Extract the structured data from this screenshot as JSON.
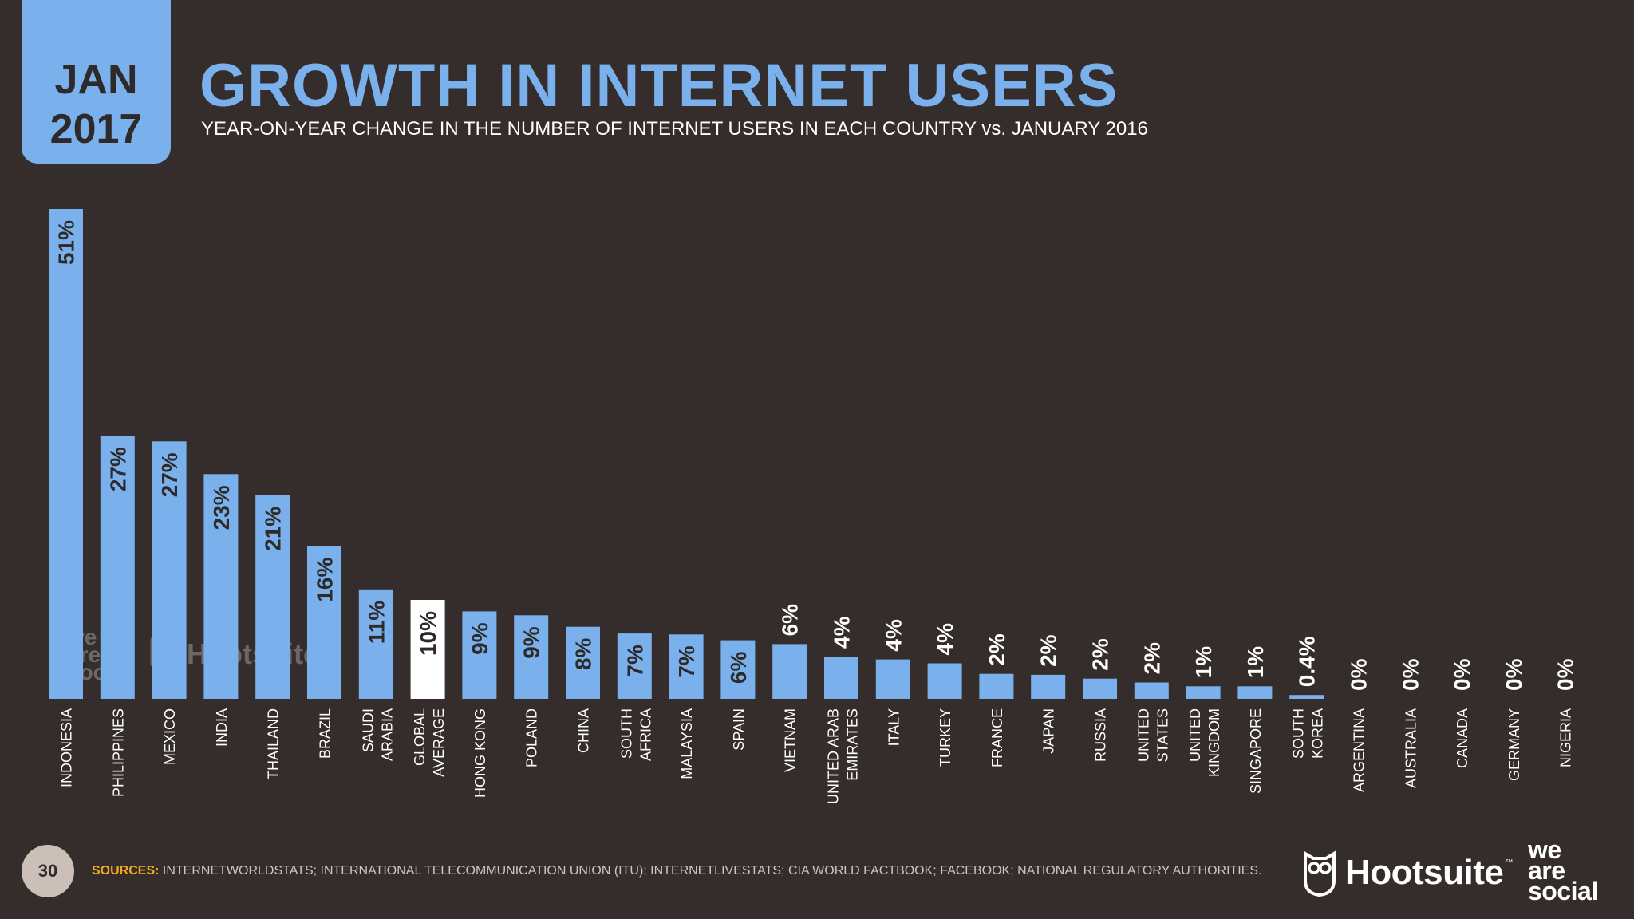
{
  "header": {
    "month": "JAN",
    "year": "2017",
    "title": "GROWTH IN INTERNET USERS",
    "subtitle": "YEAR-ON-YEAR CHANGE IN THE NUMBER OF INTERNET USERS IN EACH COUNTRY vs. JANUARY 2016"
  },
  "footer": {
    "page_number": "30",
    "sources_label": "SOURCES:",
    "sources_text": " INTERNETWORLDSTATS; INTERNATIONAL TELECOMMUNICATION UNION (ITU); INTERNETLIVESTATS; CIA WORLD FACTBOOK; FACEBOOK; NATIONAL REGULATORY AUTHORITIES.",
    "brand_hootsuite": "Hootsuite",
    "brand_hootsuite_tm": "™",
    "brand_was_line1": "we",
    "brand_was_line2": "are",
    "brand_was_line3": "social"
  },
  "watermark": {
    "was": [
      "we",
      "are",
      "social"
    ],
    "hootsuite": "Hootsuite"
  },
  "colors": {
    "background": "#342d2b",
    "bar": "#7ab1ec",
    "highlight_bar": "#ffffff",
    "bar_label_text": "#2e2a29",
    "value_label_outside": "#ffffff",
    "category_text": "#ffffff",
    "sources_label": "#f2a91f"
  },
  "chart_data": {
    "type": "bar",
    "ylim": [
      0,
      51
    ],
    "grid": false,
    "highlight_category": "GLOBAL AVERAGE",
    "categories": [
      [
        "INDONESIA"
      ],
      [
        "PHILIPPINES"
      ],
      [
        "MEXICO"
      ],
      [
        "INDIA"
      ],
      [
        "THAILAND"
      ],
      [
        "BRAZIL"
      ],
      [
        "SAUDI",
        "ARABIA"
      ],
      [
        "GLOBAL",
        "AVERAGE"
      ],
      [
        "HONG KONG"
      ],
      [
        "POLAND"
      ],
      [
        "CHINA"
      ],
      [
        "SOUTH",
        "AFRICA"
      ],
      [
        "MALAYSIA"
      ],
      [
        "SPAIN"
      ],
      [
        "VIETNAM"
      ],
      [
        "UNITED ARAB",
        "EMIRATES"
      ],
      [
        "ITALY"
      ],
      [
        "TURKEY"
      ],
      [
        "FRANCE"
      ],
      [
        "JAPAN"
      ],
      [
        "RUSSIA"
      ],
      [
        "UNITED",
        "STATES"
      ],
      [
        "UNITED",
        "KINGDOM"
      ],
      [
        "SINGAPORE"
      ],
      [
        "SOUTH",
        "KOREA"
      ],
      [
        "ARGENTINA"
      ],
      [
        "AUSTRALIA"
      ],
      [
        "CANADA"
      ],
      [
        "GERMANY"
      ],
      [
        "NIGERIA"
      ]
    ],
    "values": [
      51,
      27,
      27,
      23,
      21,
      16,
      11,
      10,
      9,
      9,
      8,
      7,
      7,
      6,
      6,
      4,
      4,
      4,
      2,
      2,
      2,
      2,
      1,
      1,
      0.4,
      0,
      0,
      0,
      0,
      0
    ],
    "value_labels": [
      "51%",
      "27%",
      "27%",
      "23%",
      "21%",
      "16%",
      "11%",
      "10%",
      "9%",
      "9%",
      "8%",
      "7%",
      "7%",
      "6%",
      "6%",
      "4%",
      "4%",
      "4%",
      "2%",
      "2%",
      "2%",
      "2%",
      "1%",
      "1%",
      "0.4%",
      "0%",
      "0%",
      "0%",
      "0%",
      "0%"
    ],
    "bar_heights_estimated": [
      51,
      27.4,
      26.8,
      23.4,
      21.2,
      15.9,
      11.4,
      10.3,
      9.1,
      8.7,
      7.5,
      6.8,
      6.7,
      6.1,
      5.7,
      4.4,
      4.1,
      3.7,
      2.6,
      2.5,
      2.1,
      1.7,
      1.3,
      1.3,
      0.4,
      0,
      0,
      0,
      0,
      0
    ]
  }
}
